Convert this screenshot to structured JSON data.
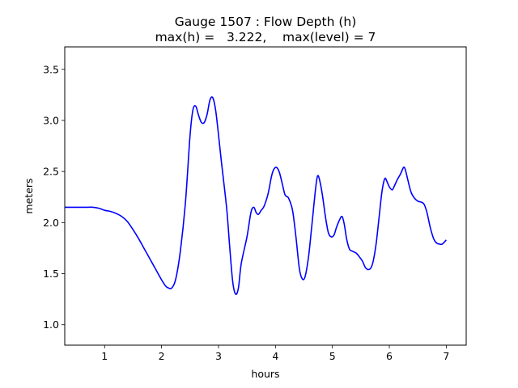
{
  "chart_data": {
    "type": "line",
    "title_line1": "Gauge 1507 : Flow Depth (h)",
    "title_line2": "max(h) =   3.222,    max(level) = 7",
    "xlabel": "hours",
    "ylabel": "meters",
    "xlim": [
      0.3,
      7.35
    ],
    "ylim": [
      0.8,
      3.72
    ],
    "xticks": [
      1,
      2,
      3,
      4,
      5,
      6,
      7
    ],
    "xtick_labels": [
      "1",
      "2",
      "3",
      "4",
      "5",
      "6",
      "7"
    ],
    "yticks": [
      1.0,
      1.5,
      2.0,
      2.5,
      3.0,
      3.5
    ],
    "ytick_labels": [
      "1.0",
      "1.5",
      "2.0",
      "2.5",
      "3.0",
      "3.5"
    ],
    "grid": false,
    "series": [
      {
        "color": "#0000ff",
        "x": [
          0.3,
          0.5,
          0.7,
          0.8,
          0.9,
          1.0,
          1.1,
          1.2,
          1.3,
          1.4,
          1.5,
          1.6,
          1.7,
          1.8,
          1.9,
          2.0,
          2.07,
          2.12,
          2.18,
          2.25,
          2.33,
          2.42,
          2.5,
          2.55,
          2.6,
          2.65,
          2.7,
          2.75,
          2.8,
          2.85,
          2.9,
          2.95,
          3.0,
          3.05,
          3.1,
          3.15,
          3.2,
          3.25,
          3.3,
          3.35,
          3.4,
          3.5,
          3.57,
          3.62,
          3.66,
          3.7,
          3.75,
          3.8,
          3.87,
          3.93,
          3.97,
          4.02,
          4.07,
          4.12,
          4.17,
          4.23,
          4.3,
          4.36,
          4.42,
          4.47,
          4.52,
          4.58,
          4.63,
          4.68,
          4.72,
          4.75,
          4.79,
          4.83,
          4.88,
          4.93,
          4.98,
          5.03,
          5.07,
          5.12,
          5.17,
          5.21,
          5.25,
          5.3,
          5.35,
          5.42,
          5.48,
          5.53,
          5.58,
          5.63,
          5.68,
          5.72,
          5.77,
          5.82,
          5.87,
          5.92,
          5.96,
          6.0,
          6.05,
          6.09,
          6.14,
          6.2,
          6.25,
          6.28,
          6.32,
          6.38,
          6.44,
          6.5,
          6.56,
          6.61,
          6.66,
          6.72,
          6.78,
          6.83,
          6.88,
          6.93,
          7.0
        ],
        "y": [
          2.15,
          2.15,
          2.15,
          2.15,
          2.14,
          2.12,
          2.11,
          2.09,
          2.06,
          2.01,
          1.93,
          1.84,
          1.74,
          1.64,
          1.54,
          1.44,
          1.38,
          1.36,
          1.36,
          1.45,
          1.72,
          2.2,
          2.85,
          3.1,
          3.14,
          3.05,
          2.98,
          2.98,
          3.06,
          3.2,
          3.222,
          3.1,
          2.86,
          2.6,
          2.36,
          2.1,
          1.74,
          1.42,
          1.3,
          1.36,
          1.6,
          1.86,
          2.1,
          2.15,
          2.1,
          2.08,
          2.12,
          2.16,
          2.28,
          2.45,
          2.52,
          2.54,
          2.49,
          2.38,
          2.27,
          2.24,
          2.12,
          1.86,
          1.55,
          1.45,
          1.47,
          1.66,
          1.92,
          2.2,
          2.4,
          2.46,
          2.38,
          2.25,
          2.05,
          1.9,
          1.86,
          1.88,
          1.95,
          2.02,
          2.06,
          1.98,
          1.84,
          1.74,
          1.72,
          1.7,
          1.66,
          1.62,
          1.56,
          1.54,
          1.56,
          1.63,
          1.8,
          2.05,
          2.3,
          2.43,
          2.4,
          2.35,
          2.32,
          2.36,
          2.42,
          2.48,
          2.54,
          2.52,
          2.43,
          2.3,
          2.24,
          2.21,
          2.2,
          2.18,
          2.1,
          1.95,
          1.84,
          1.8,
          1.79,
          1.79,
          1.83
        ]
      }
    ]
  }
}
